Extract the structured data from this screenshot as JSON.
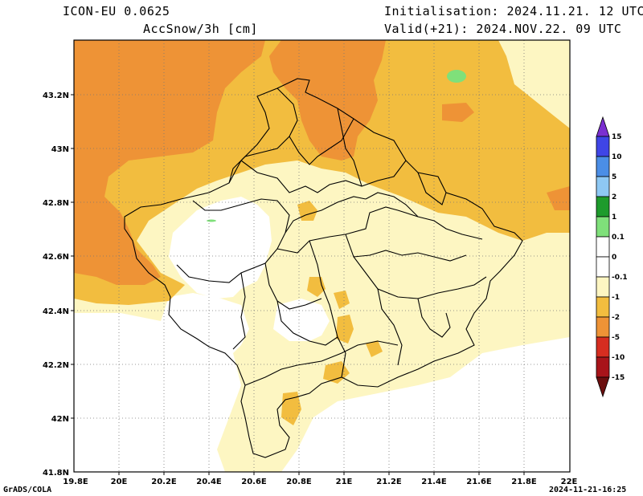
{
  "header": {
    "model": "ICON-EU 0.0625",
    "variable": "AccSnow/3h [cm]",
    "init": "Initialisation: 2024.11.21. 12 UTC",
    "valid": "Valid(+21): 2024.NOV.22. 09 UTC"
  },
  "footer": {
    "credit": "GrADS/COLA",
    "timestamp": "2024-11-21-16:25"
  },
  "axes": {
    "x_ticks": [
      "19.8E",
      "20E",
      "20.2E",
      "20.4E",
      "20.6E",
      "20.8E",
      "21E",
      "21.2E",
      "21.4E",
      "21.6E",
      "21.8E",
      "22E"
    ],
    "y_ticks": [
      "41.8N",
      "42N",
      "42.2N",
      "42.4N",
      "42.6N",
      "42.8N",
      "43N",
      "43.2N"
    ],
    "x_range": [
      19.8,
      22.0
    ],
    "y_range": [
      41.8,
      43.4
    ],
    "grid": true
  },
  "colorbar": {
    "labels": [
      "15",
      "10",
      "5",
      "2",
      "1",
      "0.1",
      "0",
      "-0.1",
      "-1",
      "-2",
      "-5",
      "-10",
      "-15"
    ],
    "colors": [
      "#7b2fd0",
      "#3f45e6",
      "#4b8ee6",
      "#8ec8f4",
      "#1e9b2c",
      "#7fe07a",
      "#ffffff",
      "#fdf6c2",
      "#f2bd3f",
      "#ee9336",
      "#d62d20",
      "#a8141a",
      "#6b0e0e"
    ]
  },
  "map_colors": {
    "light": "#fdf6c2",
    "mid": "#f2bd3f",
    "dark": "#ee9336",
    "green": "#7fe07a"
  }
}
